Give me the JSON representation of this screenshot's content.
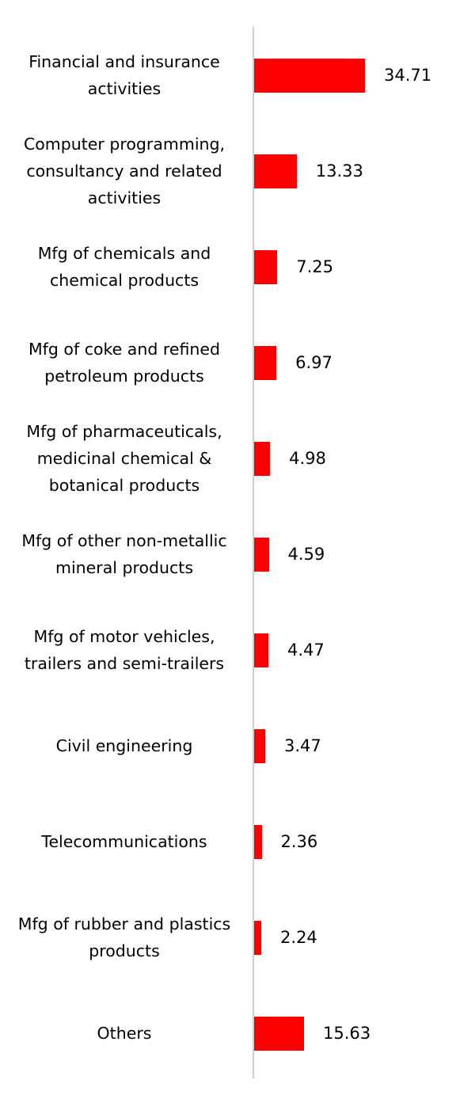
{
  "chart_data": {
    "type": "bar",
    "orientation": "horizontal",
    "categories": [
      "Financial and insurance activities",
      "Computer programming, consultancy and related activities",
      "Mfg of chemicals and chemical products",
      "Mfg of coke and refined petroleum products",
      "Mfg of pharmaceuticals, medicinal chemical & botanical products",
      "Mfg of other non-metallic mineral products",
      "Mfg of motor vehicles, trailers and semi-trailers",
      "Civil engineering",
      "Telecommunications",
      "Mfg of rubber and plastics products",
      "Others"
    ],
    "values": [
      34.71,
      13.33,
      7.25,
      6.97,
      4.98,
      4.59,
      4.47,
      3.47,
      2.36,
      2.24,
      15.63
    ],
    "value_labels": [
      "34.71",
      "13.33",
      "7.25",
      "6.97",
      "4.98",
      "4.59",
      "4.47",
      "3.47",
      "2.36",
      "2.24",
      "15.63"
    ],
    "title": "",
    "xlabel": "",
    "ylabel": "",
    "xlim": [
      0,
      40
    ],
    "grid": false,
    "legend": "none",
    "bar_color": "#ff0000"
  }
}
